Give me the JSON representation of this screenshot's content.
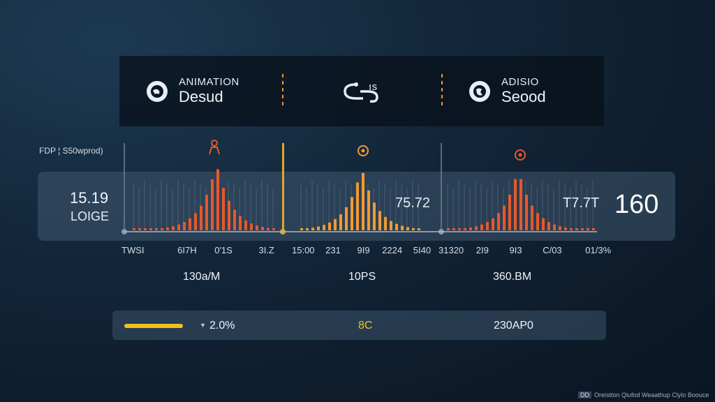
{
  "topbar": {
    "item1": {
      "small": "ANIMATION",
      "big": "Desud",
      "icon": "globe-icon"
    },
    "item2": {
      "small": "ıs",
      "icon": "loop-icon"
    },
    "item3": {
      "small": "ADISIO",
      "big": "Seood",
      "icon": "globe-icon"
    }
  },
  "fdp_label": "FDP ¦ S50wprod)",
  "left": {
    "value": "15.19",
    "label": "LOIGE"
  },
  "mid1": "75.72",
  "mid2": "T7.7T",
  "big_value": "160",
  "axis": {
    "g1": [
      "TWSI",
      "6I7H",
      "0'1S",
      "3I.Z"
    ],
    "g2": [
      "15:00",
      "231",
      "9I9",
      "2224",
      "5I40"
    ],
    "g3": [
      "31320",
      "2I9",
      "9I3",
      "C/03",
      "01/3%"
    ]
  },
  "subvalues": [
    "130a/M",
    "10PS",
    "360.BM"
  ],
  "bottom": {
    "pct": "2.0%",
    "mid": "8C",
    "right": "230AP0",
    "progress": 1.0
  },
  "watermark": {
    "box": "DD",
    "text": "Oreistton Qiufod Weaathup Clylo Boouce"
  },
  "colors": {
    "accent_orange": "#e8582a",
    "accent_gold": "#e0a82a",
    "accent_amber": "#f19a32"
  }
}
